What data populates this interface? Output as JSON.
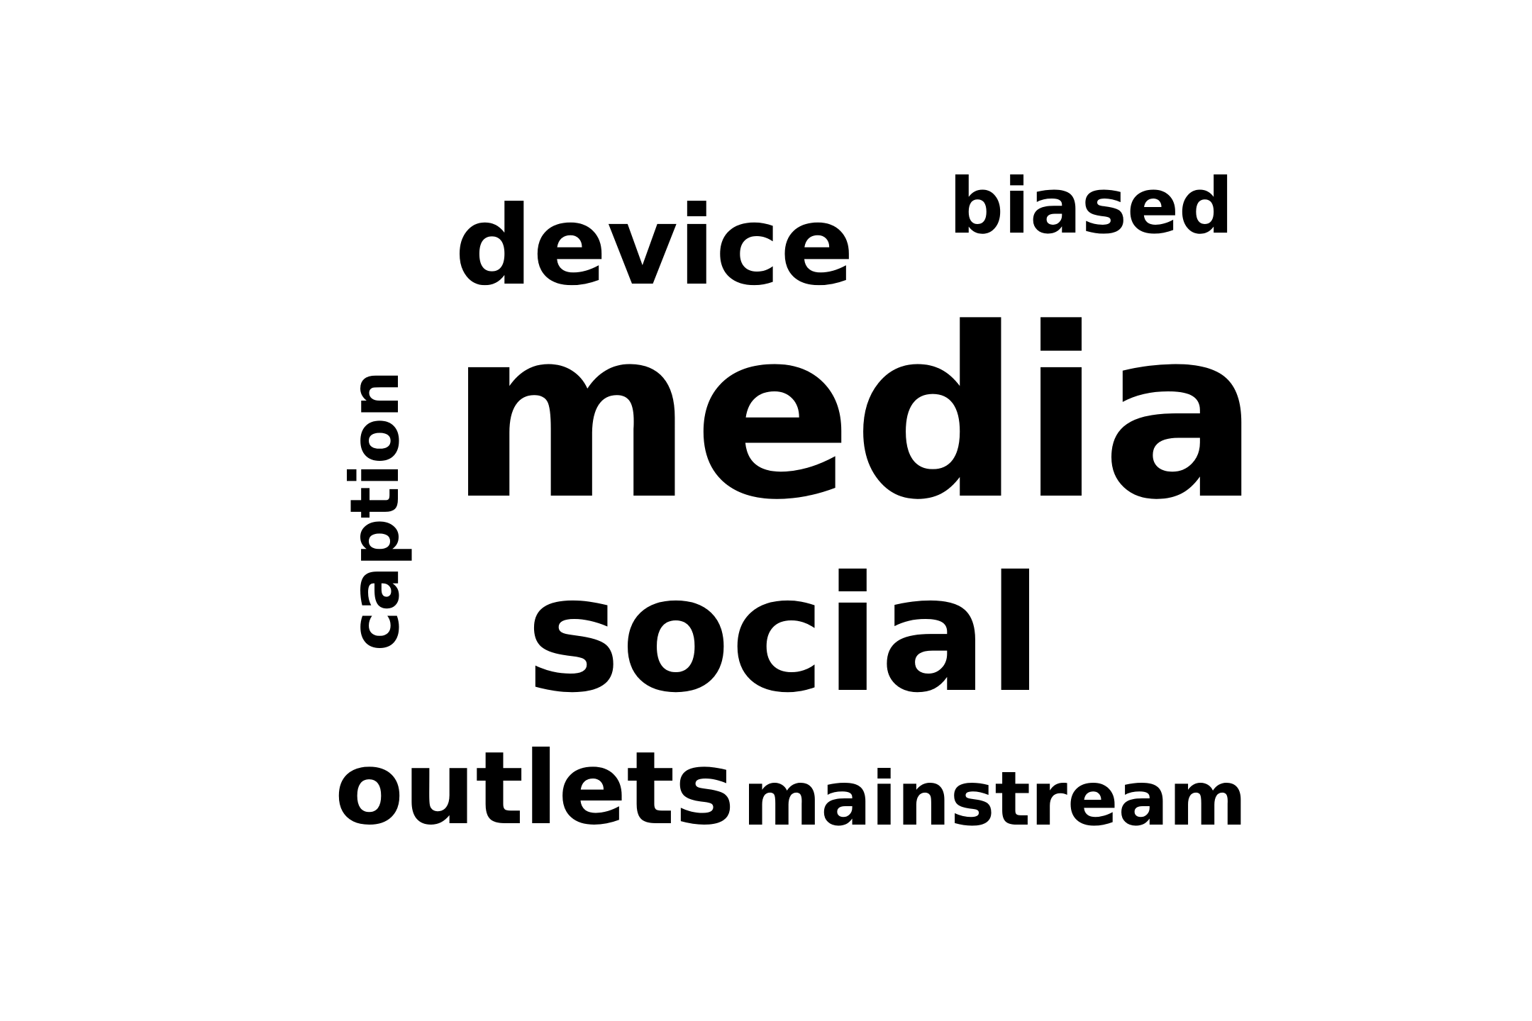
{
  "words": {
    "media": "media",
    "social": "social",
    "device": "device",
    "outlets": "outlets",
    "caption": "caption",
    "mainstream": "mainstream",
    "biased": "biased"
  },
  "colors": {
    "text": "#000000",
    "background": "#ffffff"
  }
}
